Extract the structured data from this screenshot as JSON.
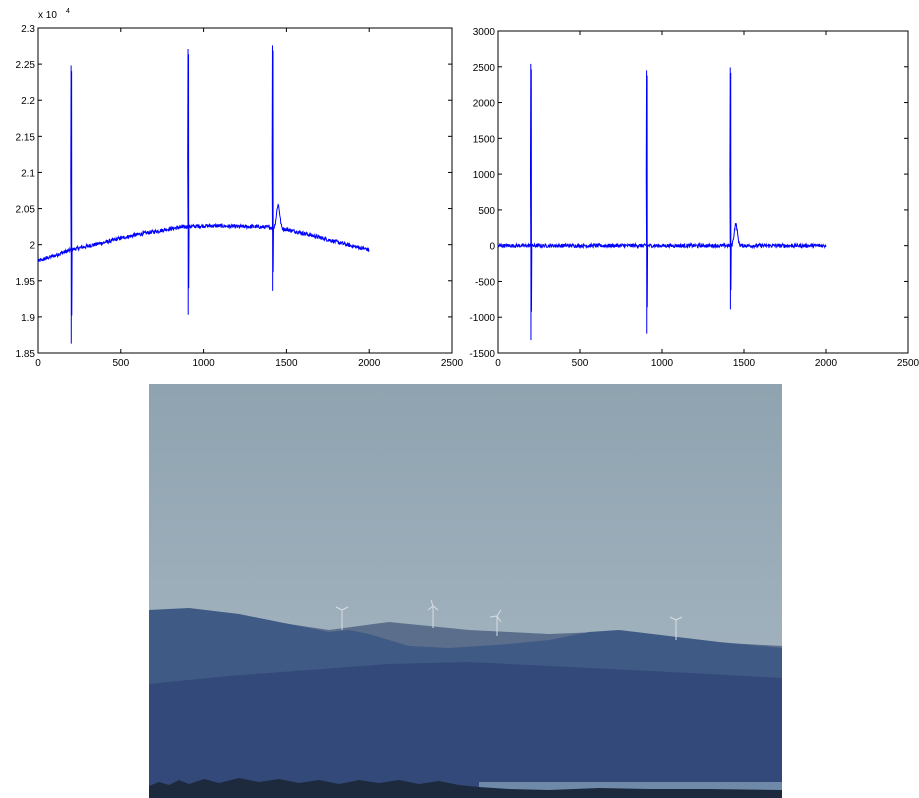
{
  "chart_data": [
    {
      "type": "line",
      "title": "",
      "xlabel": "",
      "ylabel": "",
      "xlim": [
        0,
        2500
      ],
      "ylim": [
        1.85,
        2.3
      ],
      "y_exponent_label": "x 10",
      "y_exponent_power": "4",
      "xticks": [
        "0",
        "500",
        "1000",
        "1500",
        "2000",
        "2500"
      ],
      "yticks": [
        "1.85",
        "1.9",
        "1.95",
        "2",
        "2.05",
        "2.1",
        "2.15",
        "2.2",
        "2.25",
        "2.3"
      ],
      "series_color": "#0000ff",
      "series": [
        {
          "x": [
            0,
            200,
            300,
            400,
            500,
            600,
            700,
            800,
            900,
            1000,
            1100,
            1200,
            1300,
            1400,
            1500,
            1600,
            1700,
            1800,
            1900,
            2000
          ],
          "values": [
            1.977,
            1.993,
            1.998,
            2.003,
            2.009,
            2.014,
            2.018,
            2.022,
            2.025,
            2.026,
            2.026,
            2.025,
            2.025,
            2.024,
            2.021,
            2.016,
            2.01,
            2.004,
            1.998,
            1.993
          ]
        }
      ],
      "spikes": [
        {
          "x": 200,
          "min": 1.863,
          "max": 2.248
        },
        {
          "x": 906,
          "min": 1.903,
          "max": 2.271
        },
        {
          "x": 1416,
          "min": 1.936,
          "max": 2.276
        }
      ],
      "bump": {
        "x": 1450,
        "peak": 2.055
      }
    },
    {
      "type": "line",
      "title": "",
      "xlabel": "",
      "ylabel": "",
      "xlim": [
        0,
        2500
      ],
      "ylim": [
        -1500,
        3000
      ],
      "xticks": [
        "0",
        "500",
        "1000",
        "1500",
        "2000",
        "2500"
      ],
      "yticks": [
        "-1500",
        "-1000",
        "-500",
        "0",
        "500",
        "1000",
        "1500",
        "2000",
        "2500",
        "3000"
      ],
      "series_color": "#0000ff",
      "series": [
        {
          "x": [
            0,
            2000
          ],
          "values": [
            0,
            0
          ]
        }
      ],
      "spikes": [
        {
          "x": 200,
          "min": -1320,
          "max": 2540
        },
        {
          "x": 906,
          "min": -1230,
          "max": 2450
        },
        {
          "x": 1416,
          "min": -890,
          "max": 2490
        }
      ],
      "bump": {
        "x": 1450,
        "peak": 300
      }
    }
  ],
  "photo": {
    "sky_top": "#8fa3b0",
    "sky_bottom": "#a9b9c4",
    "hill_far": "#5b6f8c",
    "hill_mid": "#3f5a84",
    "hill_near": "#33497a",
    "treeline": "#1d2a3e",
    "lake": "#6f89a8"
  }
}
